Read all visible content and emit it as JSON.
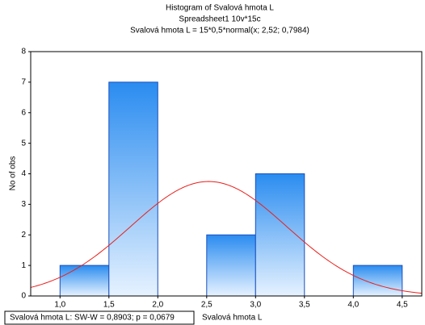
{
  "chart_data": {
    "type": "histogram",
    "title": "Histogram of Svalová hmota L",
    "subtitle": "Spreadsheet1 10v*15c",
    "formula": "Svalová hmota L = 15*0,5*normal(x; 2,52; 0,7984)",
    "x_label": "Svalová hmota L",
    "y_label": "No of obs",
    "stats_note": "Svalová hmota L:  SW-W = 0,8903; p = 0,0679",
    "bins": [
      1.0,
      1.5,
      2.0,
      2.5,
      3.0,
      3.5,
      4.0,
      4.5
    ],
    "values": [
      1,
      7,
      0,
      2,
      4,
      0,
      1
    ],
    "color": "#2a8cf0",
    "curve": {
      "n": 15,
      "bin_width": 0.5,
      "mean": 2.52,
      "sd": 0.7984,
      "color": "#e8201c"
    },
    "xlim": [
      0.7,
      4.7
    ],
    "ylim": [
      0,
      8
    ],
    "xticks": [
      {
        "value": 1.0,
        "label": "1,0"
      },
      {
        "value": 1.5,
        "label": "1,5"
      },
      {
        "value": 2.0,
        "label": "2,0"
      },
      {
        "value": 2.5,
        "label": "2,5"
      },
      {
        "value": 3.0,
        "label": "3,0"
      },
      {
        "value": 3.5,
        "label": "3,5"
      },
      {
        "value": 4.0,
        "label": "4,0"
      },
      {
        "value": 4.5,
        "label": "4,5"
      }
    ],
    "yticks": [
      0,
      1,
      2,
      3,
      4,
      5,
      6,
      7,
      8
    ]
  }
}
